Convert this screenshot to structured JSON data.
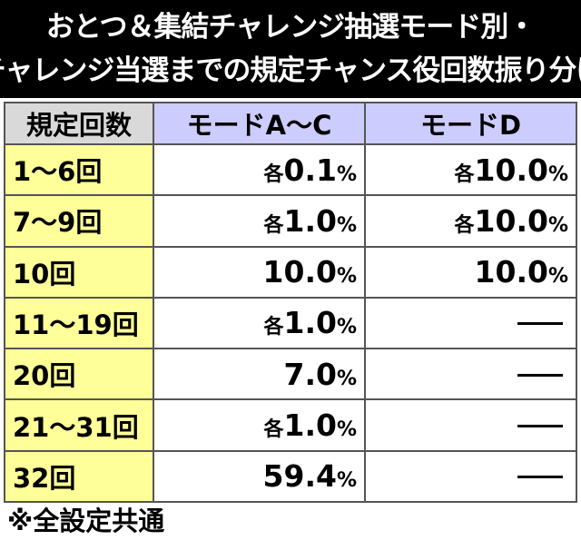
{
  "title": {
    "line1": "おとつ＆集結チャレンジ抽選モード別・",
    "line2": "チャレンジ当選までの規定チャンス役回数振り分け"
  },
  "table": {
    "headers": [
      "規定回数",
      "モードA～C",
      "モードD"
    ],
    "rows": [
      {
        "count": "1～6回",
        "ac": {
          "prefix": "各",
          "num": "0.1",
          "unit": "%"
        },
        "d": {
          "prefix": "各",
          "num": "10.0",
          "unit": "%"
        }
      },
      {
        "count": "7～9回",
        "ac": {
          "prefix": "各",
          "num": "1.0",
          "unit": "%"
        },
        "d": {
          "prefix": "各",
          "num": "10.0",
          "unit": "%"
        }
      },
      {
        "count": "10回",
        "ac": {
          "prefix": "",
          "num": "10.0",
          "unit": "%"
        },
        "d": {
          "prefix": "",
          "num": "10.0",
          "unit": "%"
        }
      },
      {
        "count": "11～19回",
        "ac": {
          "prefix": "各",
          "num": "1.0",
          "unit": "%"
        },
        "d": null
      },
      {
        "count": "20回",
        "ac": {
          "prefix": "",
          "num": "7.0",
          "unit": "%"
        },
        "d": null
      },
      {
        "count": "21～31回",
        "ac": {
          "prefix": "各",
          "num": "1.0",
          "unit": "%"
        },
        "d": null
      },
      {
        "count": "32回",
        "ac": {
          "prefix": "",
          "num": "59.4",
          "unit": "%"
        },
        "d": null
      }
    ]
  },
  "footnote": "※全設定共通",
  "colors": {
    "title_bg": "#000000",
    "header_count_bg": "#d9d9d9",
    "header_mode_bg": "#ccccff",
    "count_cell_bg": "#ffff99"
  }
}
